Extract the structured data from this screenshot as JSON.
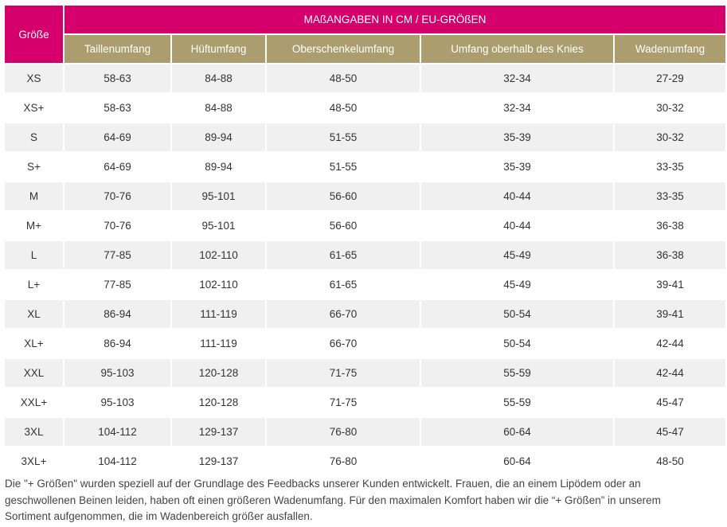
{
  "table": {
    "size_header": "Größe",
    "group_header": "MAßANGABEN IN CM / EU-GRÖßEN",
    "columns": [
      "Taillenumfang",
      "Hüftumfang",
      "Oberschenkelumfang",
      "Umfang oberhalb des Knies",
      "Wadenumfang"
    ],
    "rows": [
      [
        "XS",
        "58-63",
        "84-88",
        "48-50",
        "32-34",
        "27-29"
      ],
      [
        "XS+",
        "58-63",
        "84-88",
        "48-50",
        "32-34",
        "30-32"
      ],
      [
        "S",
        "64-69",
        "89-94",
        "51-55",
        "35-39",
        "30-32"
      ],
      [
        "S+",
        "64-69",
        "89-94",
        "51-55",
        "35-39",
        "33-35"
      ],
      [
        "M",
        "70-76",
        "95-101",
        "56-60",
        "40-44",
        "33-35"
      ],
      [
        "M+",
        "70-76",
        "95-101",
        "56-60",
        "40-44",
        "36-38"
      ],
      [
        "L",
        "77-85",
        "102-110",
        "61-65",
        "45-49",
        "36-38"
      ],
      [
        "L+",
        "77-85",
        "102-110",
        "61-65",
        "45-49",
        "39-41"
      ],
      [
        "XL",
        "86-94",
        "111-119",
        "66-70",
        "50-54",
        "39-41"
      ],
      [
        "XL+",
        "86-94",
        "111-119",
        "66-70",
        "50-54",
        "42-44"
      ],
      [
        "XXL",
        "95-103",
        "120-128",
        "71-75",
        "55-59",
        "42-44"
      ],
      [
        "XXL+",
        "95-103",
        "120-128",
        "71-75",
        "55-59",
        "45-47"
      ],
      [
        "3XL",
        "104-112",
        "129-137",
        "76-80",
        "60-64",
        "45-47"
      ],
      [
        "3XL+",
        "104-112",
        "129-137",
        "76-80",
        "60-64",
        "48-50"
      ]
    ]
  },
  "footnote": "Die \"+ Größen\" wurden speziell auf der Grundlage des Feedbacks unserer Kunden entwickelt. Frauen, die an einem Lipödem oder an geschwollenen Beinen leiden, haben oft einen größeren Wadenumfang. Für den maximalen Komfort haben wir die “+ Größen” in unserem Sortiment aufgenommen, die im Wadenbereich größer ausfallen.",
  "colors": {
    "header_magenta": "#d6006d",
    "header_gold": "#ab9d6e",
    "row_stripe": "#f0f0f0"
  }
}
